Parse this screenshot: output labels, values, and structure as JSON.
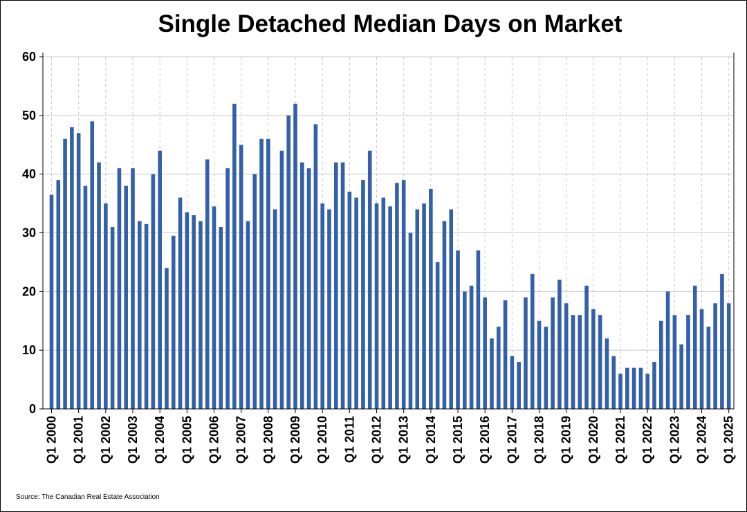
{
  "source": "Source: The Canadian Real Estate Association",
  "chart_data": {
    "type": "bar",
    "title": "Single Detached Median Days on Market",
    "xlabel": "",
    "ylabel": "",
    "ylim": [
      0,
      60
    ],
    "yticks": [
      0,
      10,
      20,
      30,
      40,
      50,
      60
    ],
    "grid": "both",
    "bar_color": "#3360a9",
    "tick_labels": [
      "Q1 2000",
      "Q1 2001",
      "Q1 2002",
      "Q1 2003",
      "Q1 2004",
      "Q1 2005",
      "Q1 2006",
      "Q1 2007",
      "Q1 2008",
      "Q1 2009",
      "Q1 2010",
      "Q1 2011",
      "Q1 2012",
      "Q1 2013",
      "Q1 2014",
      "Q1 2015",
      "Q1 2016",
      "Q1 2017",
      "Q1 2018",
      "Q1 2019",
      "Q1 2020",
      "Q1 2021",
      "Q1 2022",
      "Q1 2023",
      "Q1 2024",
      "Q1 2025"
    ],
    "categories": [
      "Q1 2000",
      "Q2 2000",
      "Q3 2000",
      "Q4 2000",
      "Q1 2001",
      "Q2 2001",
      "Q3 2001",
      "Q4 2001",
      "Q1 2002",
      "Q2 2002",
      "Q3 2002",
      "Q4 2002",
      "Q1 2003",
      "Q2 2003",
      "Q3 2003",
      "Q4 2003",
      "Q1 2004",
      "Q2 2004",
      "Q3 2004",
      "Q4 2004",
      "Q1 2005",
      "Q2 2005",
      "Q3 2005",
      "Q4 2005",
      "Q1 2006",
      "Q2 2006",
      "Q3 2006",
      "Q4 2006",
      "Q1 2007",
      "Q2 2007",
      "Q3 2007",
      "Q4 2007",
      "Q1 2008",
      "Q2 2008",
      "Q3 2008",
      "Q4 2008",
      "Q1 2009",
      "Q2 2009",
      "Q3 2009",
      "Q4 2009",
      "Q1 2010",
      "Q2 2010",
      "Q3 2010",
      "Q4 2010",
      "Q1 2011",
      "Q2 2011",
      "Q3 2011",
      "Q4 2011",
      "Q1 2012",
      "Q2 2012",
      "Q3 2012",
      "Q4 2012",
      "Q1 2013",
      "Q2 2013",
      "Q3 2013",
      "Q4 2013",
      "Q1 2014",
      "Q2 2014",
      "Q3 2014",
      "Q4 2014",
      "Q1 2015",
      "Q2 2015",
      "Q3 2015",
      "Q4 2015",
      "Q1 2016",
      "Q2 2016",
      "Q3 2016",
      "Q4 2016",
      "Q1 2017",
      "Q2 2017",
      "Q3 2017",
      "Q4 2017",
      "Q1 2018",
      "Q2 2018",
      "Q3 2018",
      "Q4 2018",
      "Q1 2019",
      "Q2 2019",
      "Q3 2019",
      "Q4 2019",
      "Q1 2020",
      "Q2 2020",
      "Q3 2020",
      "Q4 2020",
      "Q1 2021",
      "Q2 2021",
      "Q3 2021",
      "Q4 2021",
      "Q1 2022",
      "Q2 2022",
      "Q3 2022",
      "Q4 2022",
      "Q1 2023",
      "Q2 2023",
      "Q3 2023",
      "Q4 2023",
      "Q1 2024",
      "Q2 2024",
      "Q3 2024",
      "Q4 2024",
      "Q1 2025"
    ],
    "values": [
      36.5,
      39,
      46,
      48,
      47,
      38,
      49,
      42,
      35,
      31,
      41,
      38,
      41,
      32,
      31.5,
      40,
      44,
      24,
      29.5,
      36,
      33.5,
      33,
      32,
      42.5,
      34.5,
      31,
      41,
      52,
      45,
      32,
      40,
      46,
      46,
      34,
      44,
      50,
      52,
      42,
      41,
      48.5,
      35,
      34,
      42,
      42,
      37,
      36,
      39,
      44,
      35,
      36,
      34.5,
      38.5,
      39,
      30,
      34,
      35,
      37.5,
      25,
      32,
      34,
      27,
      20,
      21,
      27,
      19,
      12,
      14,
      18.5,
      9,
      8,
      19,
      23,
      15,
      14,
      19,
      22,
      18,
      16,
      16,
      21,
      17,
      16,
      12,
      9,
      6,
      7,
      7,
      7,
      6,
      8,
      15,
      20,
      16,
      11,
      16,
      21,
      17,
      14,
      18,
      23,
      18
    ]
  }
}
